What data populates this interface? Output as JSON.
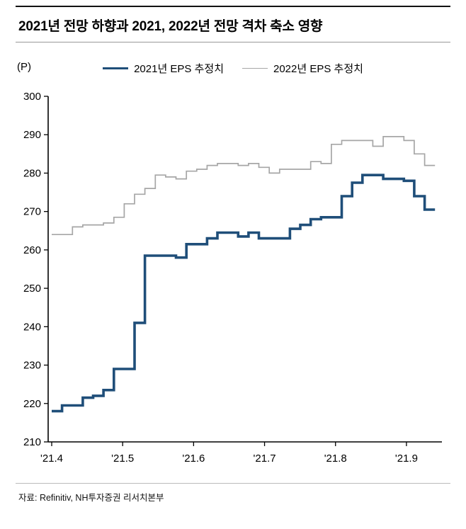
{
  "header": {
    "title": "2021년 전망 하향과 2021, 2022년 전망 격차 축소 영향"
  },
  "footer": {
    "source": "자료: Refinitiv, NH투자증권 리서치본부"
  },
  "chart_data": {
    "type": "line",
    "title": "2021년 전망 하향과 2021, 2022년 전망 격차 축소 영향",
    "unit_label": "(P)",
    "ylabel": "EPS (P)",
    "ylim": [
      210,
      300
    ],
    "ytick_step": 10,
    "grid": false,
    "legend_position": "top-center",
    "interpolation": "step-after",
    "x_range": [
      3.95,
      9.5
    ],
    "x_tick_values": [
      4,
      5,
      6,
      7,
      8,
      9
    ],
    "x_tick_labels": [
      "'21.4",
      "'21.5",
      "'21.6",
      "'21.7",
      "'21.8",
      "'21.9"
    ],
    "x_start": 4.0,
    "x_step": 0.146,
    "series": [
      {
        "name": "2021년 EPS 추정치",
        "color": "#1f4e79",
        "width": 3.6,
        "values": [
          218,
          219.5,
          219.5,
          221.5,
          222,
          223.5,
          229,
          229,
          241,
          258.5,
          258.5,
          258.5,
          258,
          261.5,
          261.5,
          263,
          264.5,
          264.5,
          263.5,
          264.5,
          263,
          263,
          263,
          265.5,
          266.5,
          268,
          268.5,
          268.5,
          274,
          277.5,
          279.5,
          279.5,
          278.5,
          278.5,
          278,
          274,
          270.5,
          270.5
        ]
      },
      {
        "name": "2022년 EPS 추정치",
        "color": "#a6a6a6",
        "width": 1.7,
        "values": [
          264,
          264,
          266,
          266.5,
          266.5,
          267,
          268.5,
          272,
          274.5,
          276,
          279.5,
          279,
          278.5,
          280.5,
          281,
          282,
          282.5,
          282.5,
          282,
          282.5,
          281.5,
          280,
          281,
          281,
          281,
          283,
          282.5,
          287.5,
          288.5,
          288.5,
          288.5,
          287,
          289.5,
          289.5,
          288.5,
          285,
          282,
          282
        ]
      }
    ]
  }
}
